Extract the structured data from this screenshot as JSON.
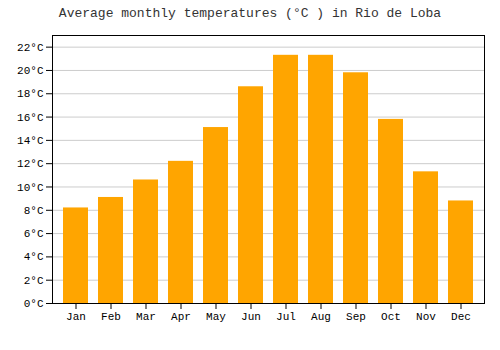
{
  "chart_data": {
    "type": "bar",
    "title": "Average monthly temperatures (°C ) in Rio de Loba",
    "categories": [
      "Jan",
      "Feb",
      "Mar",
      "Apr",
      "May",
      "Jun",
      "Jul",
      "Aug",
      "Sep",
      "Oct",
      "Nov",
      "Dec"
    ],
    "values": [
      8.2,
      9.1,
      10.6,
      12.2,
      15.1,
      18.6,
      21.3,
      21.3,
      19.8,
      15.8,
      11.3,
      8.8
    ],
    "color": "#FFA500",
    "ylim": [
      0,
      23
    ],
    "yticks": [
      {
        "value": 0,
        "label": "0°C"
      },
      {
        "value": 2,
        "label": "2°C"
      },
      {
        "value": 4,
        "label": "4°C"
      },
      {
        "value": 6,
        "label": "6°C"
      },
      {
        "value": 8,
        "label": "8°C"
      },
      {
        "value": 10,
        "label": "10°C"
      },
      {
        "value": 12,
        "label": "12°C"
      },
      {
        "value": 14,
        "label": "14°C"
      },
      {
        "value": 16,
        "label": "16°C"
      },
      {
        "value": 18,
        "label": "18°C"
      },
      {
        "value": 20,
        "label": "20°C"
      },
      {
        "value": 22,
        "label": "22°C"
      }
    ],
    "grid": true
  }
}
